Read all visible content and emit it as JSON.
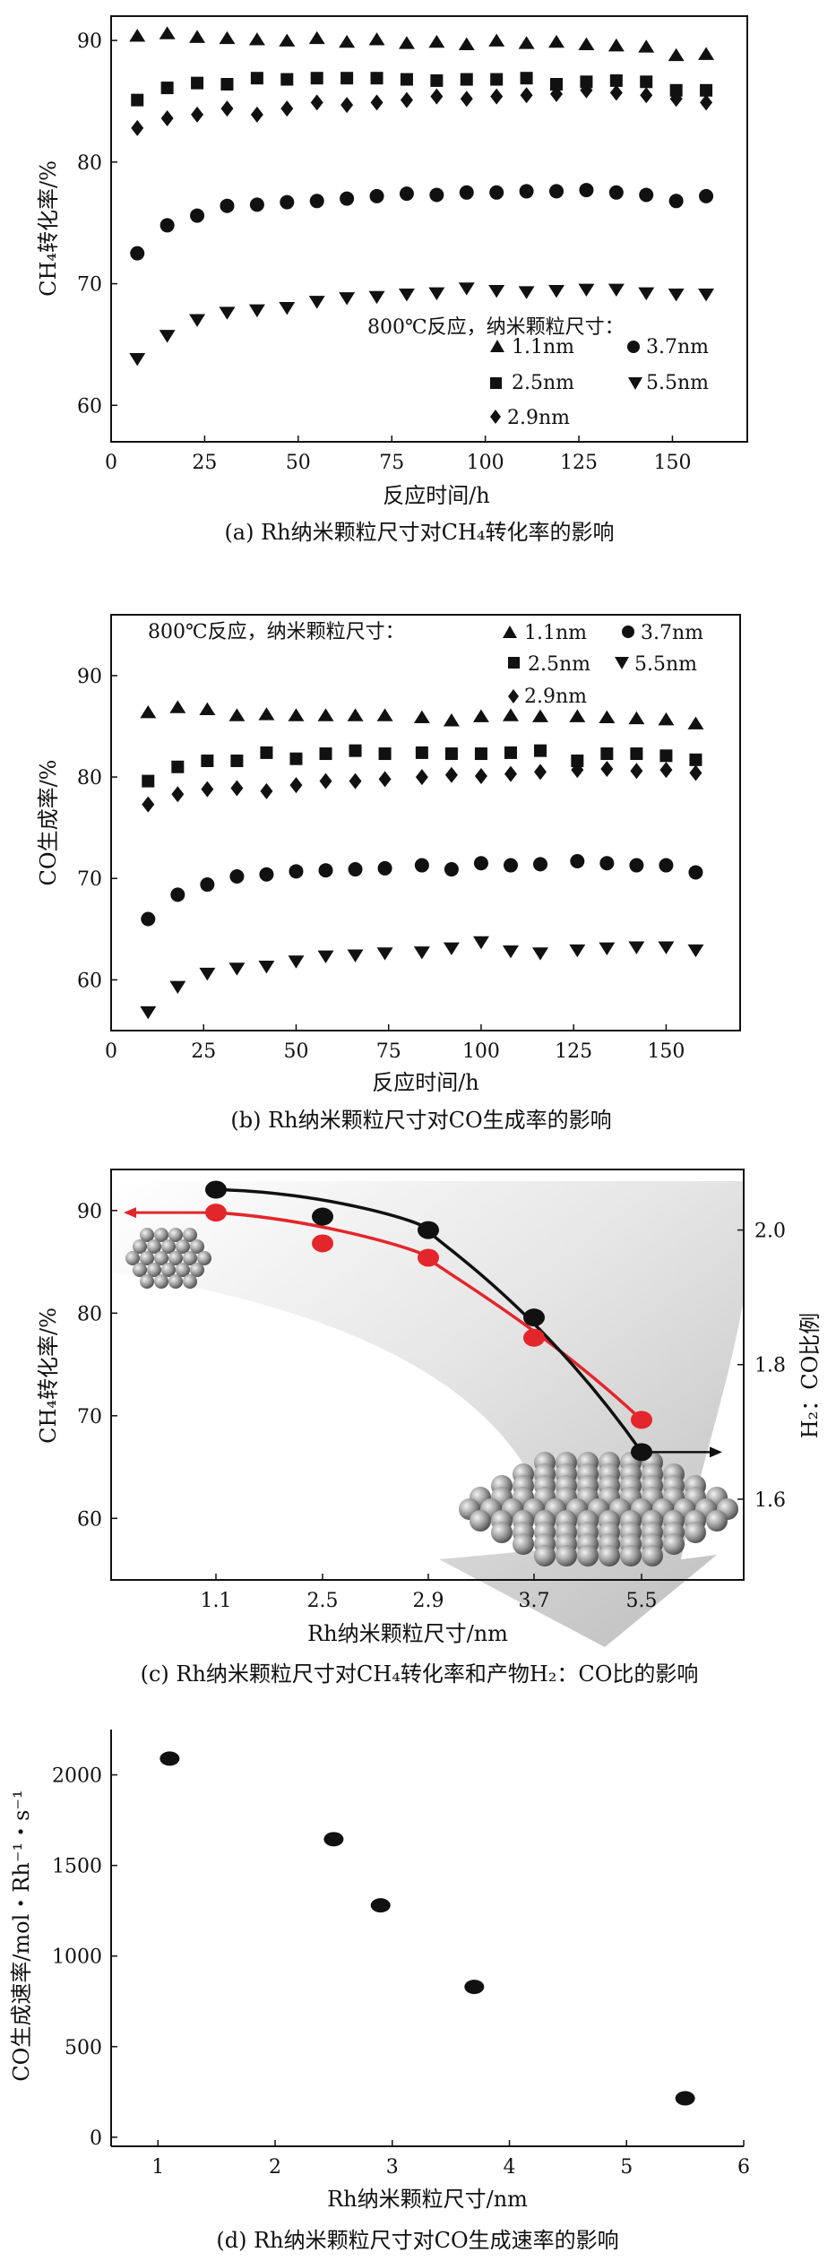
{
  "legend": {
    "title": "800℃反应，纳米颗粒尺寸：",
    "items": {
      "tri": "1.1nm",
      "circ": "3.7nm",
      "sq": "2.5nm",
      "inv": "5.5nm",
      "dia": "2.9nm"
    }
  },
  "chart_data": [
    {
      "id": "a",
      "type": "scatter",
      "caption": "(a) Rh纳米颗粒尺寸对CH₄转化率的影响",
      "xlabel": "反应时间/h",
      "ylabel": "CH₄转化率/%",
      "xlim": [
        0,
        170
      ],
      "ylim": [
        57,
        92
      ],
      "xticks": [
        "0",
        "25",
        "50",
        "75",
        "100",
        "125",
        "150"
      ],
      "yticks": [
        "60",
        "70",
        "80",
        "90"
      ],
      "series": [
        {
          "name": "1.1nm",
          "marker": "triangle",
          "x": [
            7,
            15,
            23,
            31,
            39,
            47,
            55,
            63,
            71,
            79,
            87,
            95,
            103,
            111,
            119,
            127,
            135,
            143,
            151,
            159
          ],
          "y": [
            90.4,
            90.6,
            90.3,
            90.2,
            90.1,
            90.0,
            90.2,
            89.9,
            90.1,
            89.8,
            89.9,
            89.7,
            90.0,
            89.8,
            89.9,
            89.7,
            89.6,
            89.5,
            88.8,
            88.9
          ]
        },
        {
          "name": "2.5nm",
          "marker": "square",
          "x": [
            7,
            15,
            23,
            31,
            39,
            47,
            55,
            63,
            71,
            79,
            87,
            95,
            103,
            111,
            119,
            127,
            135,
            143,
            151,
            159
          ],
          "y": [
            85.1,
            86.1,
            86.5,
            86.4,
            86.9,
            86.8,
            86.9,
            86.9,
            86.9,
            86.8,
            86.7,
            86.8,
            86.8,
            86.9,
            86.4,
            86.6,
            86.7,
            86.6,
            85.9,
            85.9
          ]
        },
        {
          "name": "2.9nm",
          "marker": "diamond",
          "x": [
            7,
            15,
            23,
            31,
            39,
            47,
            55,
            63,
            71,
            79,
            87,
            95,
            103,
            111,
            119,
            127,
            135,
            143,
            151,
            159
          ],
          "y": [
            82.8,
            83.6,
            83.9,
            84.4,
            83.9,
            84.4,
            84.9,
            84.7,
            84.9,
            85.1,
            85.4,
            85.2,
            85.4,
            85.5,
            85.6,
            85.9,
            85.7,
            85.5,
            85.2,
            84.9
          ]
        },
        {
          "name": "3.7nm",
          "marker": "circle",
          "x": [
            7,
            15,
            23,
            31,
            39,
            47,
            55,
            63,
            71,
            79,
            87,
            95,
            103,
            111,
            119,
            127,
            135,
            143,
            151,
            159
          ],
          "y": [
            72.5,
            74.8,
            75.6,
            76.4,
            76.5,
            76.7,
            76.8,
            77.0,
            77.2,
            77.4,
            77.3,
            77.5,
            77.5,
            77.6,
            77.6,
            77.7,
            77.5,
            77.3,
            76.8,
            77.2
          ]
        },
        {
          "name": "5.5nm",
          "marker": "invtriangle",
          "x": [
            7,
            15,
            23,
            31,
            39,
            47,
            55,
            63,
            71,
            79,
            87,
            95,
            103,
            111,
            119,
            127,
            135,
            143,
            151,
            159
          ],
          "y": [
            63.8,
            65.7,
            67.0,
            67.6,
            67.8,
            68.0,
            68.5,
            68.8,
            68.9,
            69.1,
            69.2,
            69.6,
            69.4,
            69.3,
            69.4,
            69.5,
            69.5,
            69.2,
            69.1,
            69.1
          ]
        }
      ]
    },
    {
      "id": "b",
      "type": "scatter",
      "caption": "(b) Rh纳米颗粒尺寸对CO生成率的影响",
      "xlabel": "反应时间/h",
      "ylabel": "CO生成率/%",
      "xlim": [
        0,
        170
      ],
      "ylim": [
        55,
        96
      ],
      "xticks": [
        "0",
        "25",
        "50",
        "75",
        "100",
        "125",
        "150"
      ],
      "yticks": [
        "60",
        "70",
        "80",
        "90"
      ],
      "series": [
        {
          "name": "1.1nm",
          "marker": "triangle",
          "x": [
            10,
            18,
            26,
            34,
            42,
            50,
            58,
            66,
            74,
            84,
            92,
            100,
            108,
            116,
            126,
            134,
            142,
            150,
            158
          ],
          "y": [
            86.4,
            86.9,
            86.7,
            86.1,
            86.2,
            86.1,
            86.1,
            86.1,
            86.1,
            85.9,
            85.6,
            86.0,
            86.1,
            86.0,
            86.0,
            85.9,
            85.8,
            85.7,
            85.3
          ]
        },
        {
          "name": "2.5nm",
          "marker": "square",
          "x": [
            10,
            18,
            26,
            34,
            42,
            50,
            58,
            66,
            74,
            84,
            92,
            100,
            108,
            116,
            126,
            134,
            142,
            150,
            158
          ],
          "y": [
            79.6,
            81.0,
            81.6,
            81.6,
            82.4,
            81.8,
            82.3,
            82.6,
            82.3,
            82.4,
            82.3,
            82.3,
            82.4,
            82.6,
            81.6,
            82.3,
            82.3,
            82.1,
            81.7
          ]
        },
        {
          "name": "2.9nm",
          "marker": "diamond",
          "x": [
            10,
            18,
            26,
            34,
            42,
            50,
            58,
            66,
            74,
            84,
            92,
            100,
            108,
            116,
            126,
            134,
            142,
            150,
            158
          ],
          "y": [
            77.3,
            78.3,
            78.8,
            78.9,
            78.6,
            79.2,
            79.6,
            79.6,
            79.8,
            80.0,
            80.2,
            80.1,
            80.3,
            80.5,
            80.7,
            80.8,
            80.6,
            80.7,
            80.4
          ]
        },
        {
          "name": "3.7nm",
          "marker": "circle",
          "x": [
            10,
            18,
            26,
            34,
            42,
            50,
            58,
            66,
            74,
            84,
            92,
            100,
            108,
            116,
            126,
            134,
            142,
            150,
            158
          ],
          "y": [
            66.0,
            68.4,
            69.4,
            70.2,
            70.4,
            70.7,
            70.8,
            70.9,
            71.0,
            71.3,
            70.9,
            71.5,
            71.3,
            71.4,
            71.7,
            71.5,
            71.3,
            71.3,
            70.6
          ]
        },
        {
          "name": "5.5nm",
          "marker": "invtriangle",
          "x": [
            10,
            18,
            26,
            34,
            42,
            50,
            58,
            66,
            74,
            84,
            92,
            100,
            108,
            116,
            126,
            134,
            142,
            150,
            158
          ],
          "y": [
            56.8,
            59.3,
            60.6,
            61.1,
            61.3,
            61.8,
            62.3,
            62.4,
            62.6,
            62.7,
            63.1,
            63.7,
            62.8,
            62.6,
            62.9,
            63.1,
            63.2,
            63.2,
            62.9
          ]
        }
      ]
    },
    {
      "id": "c",
      "type": "line",
      "caption": "(c) Rh纳米颗粒尺寸对CH₄转化率和产物H₂：CO比的影响",
      "xlabel": "Rh纳米颗粒尺寸/nm",
      "ylabel": "CH₄转化率/%",
      "y2label": "H₂：CO比例",
      "categories": [
        "1.1",
        "2.5",
        "2.9",
        "3.7",
        "5.5"
      ],
      "ylim": [
        54,
        94
      ],
      "y2lim": [
        1.48,
        2.09
      ],
      "yticks": [
        "60",
        "70",
        "80",
        "90"
      ],
      "y2ticks": [
        "1.6",
        "1.8",
        "2.0"
      ],
      "series": [
        {
          "name": "CH₄转化率",
          "axis": "left",
          "color": "#e3262b",
          "values": [
            89.8,
            86.8,
            85.4,
            77.6,
            69.6
          ]
        },
        {
          "name": "H₂：CO比例",
          "axis": "right",
          "color": "#111111",
          "values": [
            2.06,
            2.02,
            2.0,
            1.87,
            1.67
          ]
        }
      ]
    },
    {
      "id": "d",
      "type": "scatter",
      "caption": "(d) Rh纳米颗粒尺寸对CO生成速率的影响",
      "xlabel": "Rh纳米颗粒尺寸/nm",
      "ylabel": "CO生成速率/mol・Rh⁻¹・s⁻¹",
      "xlim": [
        0.6,
        6.0
      ],
      "ylim": [
        -50,
        2250
      ],
      "xticks": [
        "1",
        "2",
        "3",
        "4",
        "5",
        "6"
      ],
      "yticks": [
        "0",
        "500",
        "1000",
        "1500",
        "2000"
      ],
      "series": [
        {
          "name": "CO生成速率",
          "marker": "ellipse",
          "x": [
            1.1,
            2.5,
            2.9,
            3.7,
            5.5
          ],
          "y": [
            2090,
            1645,
            1280,
            830,
            215
          ]
        }
      ]
    }
  ]
}
